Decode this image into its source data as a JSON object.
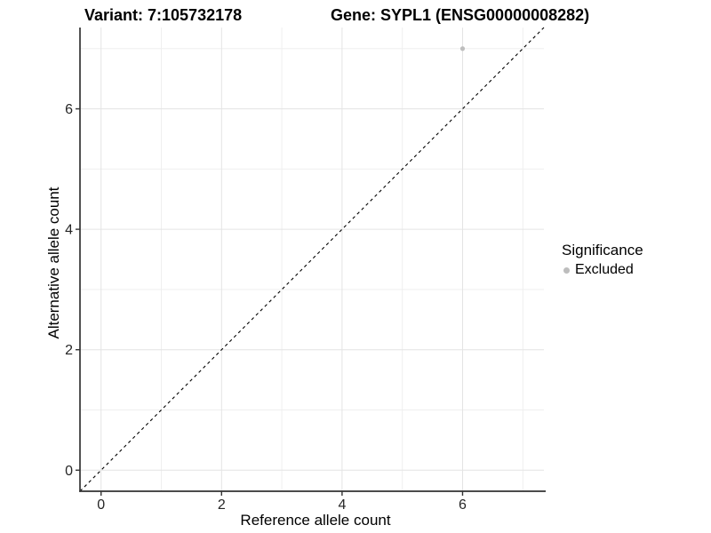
{
  "figure": {
    "title_left": "Variant: 7:105732178",
    "title_right": "Gene: SYPL1 (ENSG00000008282)"
  },
  "chart_data": {
    "type": "scatter",
    "title": "Variant: 7:105732178   Gene: SYPL1 (ENSG00000008282)",
    "xlabel": "Reference allele count",
    "ylabel": "Alternative allele count",
    "xlim": [
      -0.35,
      7.35
    ],
    "ylim": [
      -0.35,
      7.35
    ],
    "xticks": [
      0,
      2,
      4,
      6
    ],
    "yticks": [
      0,
      2,
      4,
      6
    ],
    "x_minor_gridlines": [
      1,
      3,
      5,
      7
    ],
    "y_minor_gridlines": [
      1,
      3,
      5,
      7
    ],
    "grid": true,
    "identity_line": {
      "type": "dashed",
      "slope": 1,
      "intercept": 0,
      "color": "#000000"
    },
    "points": [
      {
        "x": 6,
        "y": 7,
        "significance": "Excluded",
        "color": "#bebebe"
      }
    ],
    "legend": {
      "position": "right",
      "title": "Significance",
      "items": [
        {
          "label": "Excluded",
          "color": "#bdbdbd"
        }
      ]
    },
    "colors": {
      "background": "#ffffff",
      "axis_line": "#333333",
      "tick_text": "#262626",
      "grid_major": "#e4e4e4",
      "grid_minor": "#efefef",
      "point": "#bebebe"
    }
  }
}
